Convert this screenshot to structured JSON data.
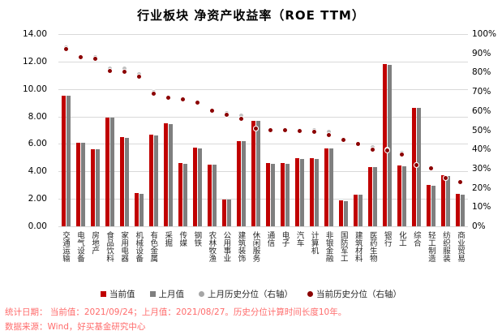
{
  "title": "行业板块 净资产收益率（ROE TTM）",
  "footer": {
    "line1": "统计日期： 当前值：2021/09/24；上月值：2021/08/27。历史分位计算时间长度10年。",
    "line2": "数据来源：Wind，好买基金研究中心"
  },
  "legend": {
    "items": [
      {
        "swatch": "square",
        "color": "#c00000",
        "label": "当前值"
      },
      {
        "swatch": "square",
        "color": "#7f7f7f",
        "label": "上月值"
      },
      {
        "swatch": "dot",
        "color": "#a6a6a6",
        "label": "上月历史分位（右轴）"
      },
      {
        "swatch": "dot",
        "color": "#8b0000",
        "label": "当前历史分位（右轴）"
      }
    ]
  },
  "colors": {
    "current_bar": "#c00000",
    "previous_bar": "#7f7f7f",
    "current_dot": "#8b0000",
    "previous_dot": "#bfbfbf",
    "gridline": "#d9d9d9",
    "footer_text": "#ff6c6c"
  },
  "chart_data": {
    "type": "bar",
    "subtype": "grouped-bars-with-percentile-dots",
    "title": "行业板块 净资产收益率（ROE TTM）",
    "grid": true,
    "legend_position": "bottom",
    "left_axis": {
      "min": 0,
      "max": 14,
      "step": 2,
      "labels": [
        "14.00",
        "12.00",
        "10.00",
        "8.00",
        "6.00",
        "4.00",
        "2.00",
        "0.00"
      ]
    },
    "right_axis": {
      "min": 0,
      "max": 100,
      "step": 10,
      "unit": "%",
      "labels": [
        "100%",
        "90%",
        "80%",
        "70%",
        "60%",
        "50%",
        "40%",
        "30%",
        "20%",
        "10%",
        "0%"
      ]
    },
    "categories": [
      "交通运输",
      "电气设备",
      "房地产",
      "食品饮料",
      "家用电器",
      "机械设备",
      "有色金属",
      "采掘",
      "传媒",
      "钢铁",
      "农林牧渔",
      "公用事业",
      "建筑装饰",
      "休闲服务",
      "通信",
      "电子",
      "汽车",
      "计算机",
      "非银金融",
      "国防军工",
      "建筑材料",
      "医药生物",
      "银行",
      "化工",
      "综合",
      "轻工制造",
      "纺织服装",
      "商业贸易"
    ],
    "series": [
      {
        "name": "当前值",
        "axis": "left",
        "style": "bar",
        "color": "#c00000",
        "values": [
          9.5,
          6.1,
          5.6,
          7.9,
          6.5,
          2.4,
          6.7,
          7.5,
          4.6,
          5.75,
          4.5,
          1.95,
          6.2,
          7.65,
          4.6,
          4.6,
          4.95,
          4.95,
          5.65,
          1.9,
          2.3,
          4.3,
          11.8,
          4.45,
          8.65,
          3.0,
          3.7,
          2.35
        ]
      },
      {
        "name": "上月值",
        "axis": "left",
        "style": "bar",
        "color": "#7f7f7f",
        "values": [
          9.5,
          6.1,
          5.6,
          7.9,
          6.45,
          2.35,
          6.6,
          7.45,
          4.55,
          5.7,
          4.5,
          1.95,
          6.2,
          7.7,
          4.55,
          4.55,
          4.9,
          4.9,
          5.7,
          1.85,
          2.3,
          4.3,
          11.75,
          4.4,
          8.6,
          2.95,
          3.65,
          2.3
        ]
      },
      {
        "name": "上月历史分位（右轴）",
        "axis": "right",
        "style": "dot",
        "color": "#bfbfbf",
        "values": [
          93,
          88.5,
          88,
          82,
          82,
          79,
          70,
          67.5,
          66,
          64.5,
          60,
          59,
          57.5,
          51,
          50.5,
          50.5,
          50,
          50,
          49,
          45.5,
          43,
          41,
          40,
          38,
          32,
          30.5,
          25,
          23
        ]
      },
      {
        "name": "当前历史分位（右轴）",
        "axis": "right",
        "style": "dot",
        "color": "#8b0000",
        "values": [
          92,
          88,
          87,
          81,
          80.5,
          78,
          69,
          67,
          66,
          64.5,
          60,
          58,
          56,
          51,
          50,
          50,
          49.5,
          49,
          47.5,
          45,
          43,
          40,
          39.5,
          37.5,
          32,
          30,
          25,
          23
        ]
      }
    ]
  }
}
